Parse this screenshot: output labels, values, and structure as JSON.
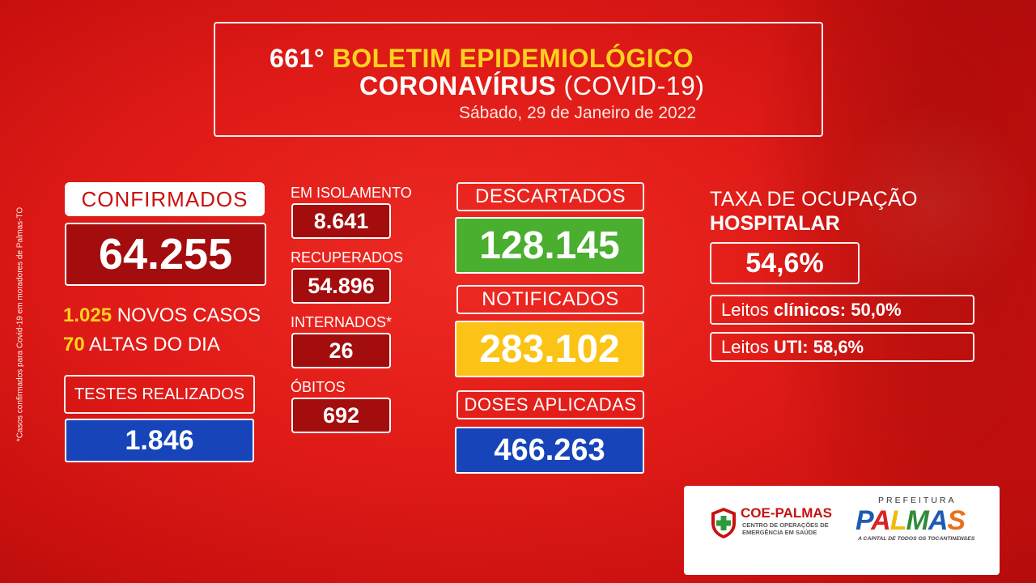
{
  "header": {
    "number": "661°",
    "title": "BOLETIM EPIDEMIOLÓGICO",
    "subtitle_bold": "CORONAVÍRUS",
    "subtitle_paren": "(COVID-19)",
    "date": "Sábado, 29 de Janeiro de 2022"
  },
  "side_note": "*Casos confirmados para Covid-19 em moradores de Palmas-TO",
  "confirmados": {
    "label": "CONFIRMADOS",
    "value": "64.255"
  },
  "novos_casos": {
    "value": "1.025",
    "label": "NOVOS CASOS"
  },
  "altas": {
    "value": "70",
    "label": "ALTAS DO DIA"
  },
  "testes": {
    "label": "TESTES REALIZADOS",
    "value": "1.846"
  },
  "isolamento": {
    "label": "EM ISOLAMENTO",
    "value": "8.641"
  },
  "recuperados": {
    "label": "RECUPERADOS",
    "value": "54.896"
  },
  "internados": {
    "label": "INTERNADOS*",
    "value": "26"
  },
  "obitos": {
    "label": "ÓBITOS",
    "value": "692"
  },
  "descartados": {
    "label": "DESCARTADOS",
    "value": "128.145"
  },
  "notificados": {
    "label": "NOTIFICADOS",
    "value": "283.102"
  },
  "doses": {
    "label": "DOSES APLICADAS",
    "value": "466.263"
  },
  "ocupacao": {
    "label_line1": "TAXA DE OCUPAÇÃO",
    "label_line2": "HOSPITALAR",
    "value": "54,6%",
    "clinicos_prefix": "Leitos",
    "clinicos_bold": "clínicos:",
    "clinicos_value": "50,0%",
    "uti_prefix": "Leitos",
    "uti_bold": "UTI:",
    "uti_value": "58,6%"
  },
  "logos": {
    "coe_name": "COE-PALMAS",
    "coe_sub1": "CENTRO DE OPERAÇÕES DE",
    "coe_sub2": "EMERGÊNCIA EM SAÚDE",
    "prefeitura": "PREFEITURA",
    "palmas_letters": [
      "P",
      "A",
      "L",
      "M",
      "A",
      "S"
    ],
    "capital": "A CAPITAL DE TODOS OS TOCANTINENSES"
  },
  "colors": {
    "background": "#e01b17",
    "highlight_yellow": "#ffd21f",
    "dark_red": "#a30d0e",
    "green": "#4aae2e",
    "yellow_box": "#fbc315",
    "blue": "#1744b8"
  }
}
